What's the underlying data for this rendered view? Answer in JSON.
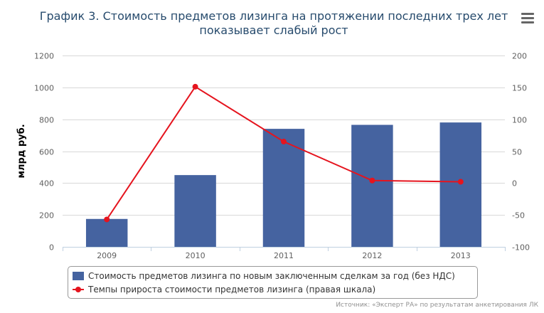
{
  "chart_title": "График 3. Стоимость предметов лизинга на протяжении последних трех лет показывает слабый рост",
  "source_note": "Источник: «Эксперт РА» по результатам анкетирования ЛК",
  "colors": {
    "bar": "#4563a0",
    "line": "#e5141e",
    "title": "#274b6d",
    "axis_text": "#606060",
    "grid": "#d8d8d8"
  },
  "icons": {
    "menu": "hamburger-menu-icon"
  },
  "chart_data": {
    "type": "bar",
    "categories": [
      "2009",
      "2010",
      "2011",
      "2012",
      "2013"
    ],
    "ylabel": "млрд руб.",
    "ylim": [
      0,
      1200
    ],
    "yticks": [
      "0",
      "200",
      "400",
      "600",
      "800",
      "1000",
      "1200"
    ],
    "y2lim": [
      -100,
      200
    ],
    "y2ticks": [
      "-100",
      "-50",
      "0",
      "50",
      "100",
      "150",
      "200"
    ],
    "grid": true,
    "legend_position": "bottom",
    "series": [
      {
        "name": "Стоимость предметов лизинга по новым заключенным сделкам за год (без НДС)",
        "type": "bar",
        "axis": "left",
        "values": [
          175,
          450,
          740,
          765,
          780
        ]
      },
      {
        "name": "Темпы прироста стоимости предметов лизинга (правая шкала)",
        "type": "line",
        "axis": "right",
        "values": [
          -57,
          151,
          65,
          4,
          2
        ]
      }
    ]
  }
}
